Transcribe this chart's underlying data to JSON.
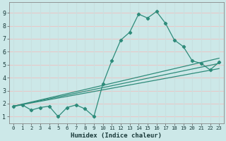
{
  "xlabel": "Humidex (Indice chaleur)",
  "bg_color": "#cce8e8",
  "grid_color_h": "#e8c8c8",
  "grid_color_v": "#c8e0e0",
  "line_color": "#2e8b7a",
  "xlim": [
    -0.5,
    23.5
  ],
  "ylim": [
    0.5,
    9.8
  ],
  "xticks": [
    0,
    1,
    2,
    3,
    4,
    5,
    6,
    7,
    8,
    9,
    10,
    11,
    12,
    13,
    14,
    15,
    16,
    17,
    18,
    19,
    20,
    21,
    22,
    23
  ],
  "yticks": [
    1,
    2,
    3,
    4,
    5,
    6,
    7,
    8,
    9
  ],
  "curve_x": [
    0,
    1,
    2,
    3,
    4,
    5,
    6,
    7,
    8,
    9,
    10,
    11,
    12,
    13,
    14,
    15,
    16,
    17,
    18,
    19,
    20,
    21,
    22,
    23
  ],
  "curve_y": [
    1.8,
    1.9,
    1.5,
    1.7,
    1.8,
    1.0,
    1.7,
    1.9,
    1.6,
    1.0,
    3.5,
    5.3,
    6.9,
    7.5,
    8.9,
    8.6,
    9.1,
    8.2,
    6.9,
    6.4,
    5.3,
    5.1,
    4.6,
    5.2
  ],
  "line1_x": [
    0,
    23
  ],
  "line1_y": [
    1.8,
    5.5
  ],
  "line2_x": [
    0,
    23
  ],
  "line2_y": [
    1.8,
    5.1
  ],
  "line3_x": [
    0,
    23
  ],
  "line3_y": [
    1.8,
    4.7
  ]
}
